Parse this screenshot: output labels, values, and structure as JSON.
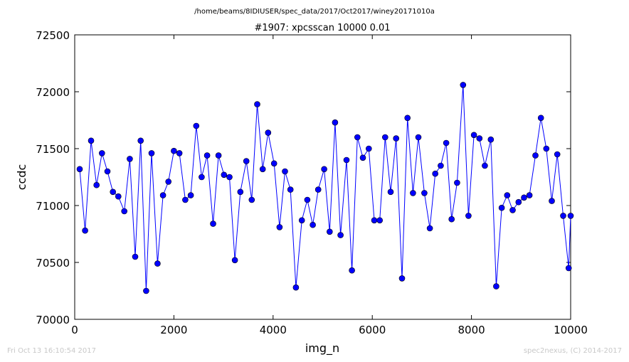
{
  "chart_data": {
    "type": "line",
    "suptitle": "/home/beams/8IDIUSER/spec_data/2017/Oct2017/winey20171010a",
    "title": "#1907: xpcsscan 10000 0.01",
    "xlabel": "img_n",
    "ylabel": "ccdc",
    "xlim": [
      0,
      10000
    ],
    "ylim": [
      70000,
      72500
    ],
    "xticks": [
      0,
      2000,
      4000,
      6000,
      8000,
      10000
    ],
    "yticks": [
      70000,
      70500,
      71000,
      71500,
      72000,
      72500
    ],
    "xtick_labels": [
      "0",
      "2000",
      "4000",
      "6000",
      "8000",
      "10000"
    ],
    "ytick_labels": [
      "70000",
      "70500",
      "71000",
      "71500",
      "72000",
      "72500"
    ],
    "grid": false,
    "legend": "none",
    "series": [
      {
        "color": "#0000ff",
        "marker": "circle",
        "x": [
          100,
          210,
          330,
          440,
          550,
          660,
          770,
          880,
          1000,
          1110,
          1220,
          1330,
          1440,
          1550,
          1670,
          1780,
          1890,
          2000,
          2110,
          2230,
          2340,
          2450,
          2560,
          2670,
          2790,
          2900,
          3010,
          3120,
          3230,
          3340,
          3460,
          3570,
          3680,
          3790,
          3900,
          4020,
          4130,
          4240,
          4350,
          4460,
          4580,
          4690,
          4800,
          4910,
          5030,
          5140,
          5250,
          5360,
          5480,
          5590,
          5700,
          5810,
          5930,
          6040,
          6150,
          6260,
          6370,
          6480,
          6600,
          6710,
          6820,
          6930,
          7050,
          7160,
          7270,
          7380,
          7490,
          7600,
          7710,
          7830,
          7940,
          8050,
          8160,
          8270,
          8390,
          8500,
          8610,
          8720,
          8830,
          8950,
          9060,
          9170,
          9290,
          9400,
          9510,
          9620,
          9730,
          9850,
          9960,
          10000
        ],
        "y": [
          71320,
          70780,
          71570,
          71180,
          71460,
          71300,
          71120,
          71080,
          70950,
          71410,
          70550,
          71570,
          70250,
          71460,
          70490,
          71090,
          71210,
          71480,
          71460,
          71050,
          71090,
          71700,
          71250,
          71440,
          70840,
          71440,
          71270,
          71250,
          70520,
          71120,
          71390,
          71050,
          71890,
          71320,
          71640,
          71370,
          70810,
          71300,
          71140,
          70280,
          70870,
          71050,
          70830,
          71140,
          71320,
          70770,
          71730,
          70740,
          71400,
          70430,
          71600,
          71420,
          71500,
          70870,
          70870,
          71600,
          71120,
          71590,
          70360,
          71770,
          71110,
          71600,
          71110,
          70800,
          71280,
          71350,
          71550,
          70880,
          71200,
          72060,
          70910,
          71620,
          71590,
          71350,
          71580,
          70290,
          70980,
          71090,
          70960,
          71030,
          71070,
          71090,
          71440,
          71770,
          71500,
          71040,
          71450,
          70910,
          70450,
          70910
        ]
      }
    ]
  },
  "footer": {
    "left": "Fri Oct 13 16:10:54 2017",
    "right": "spec2nexus, (C) 2014-2017"
  }
}
